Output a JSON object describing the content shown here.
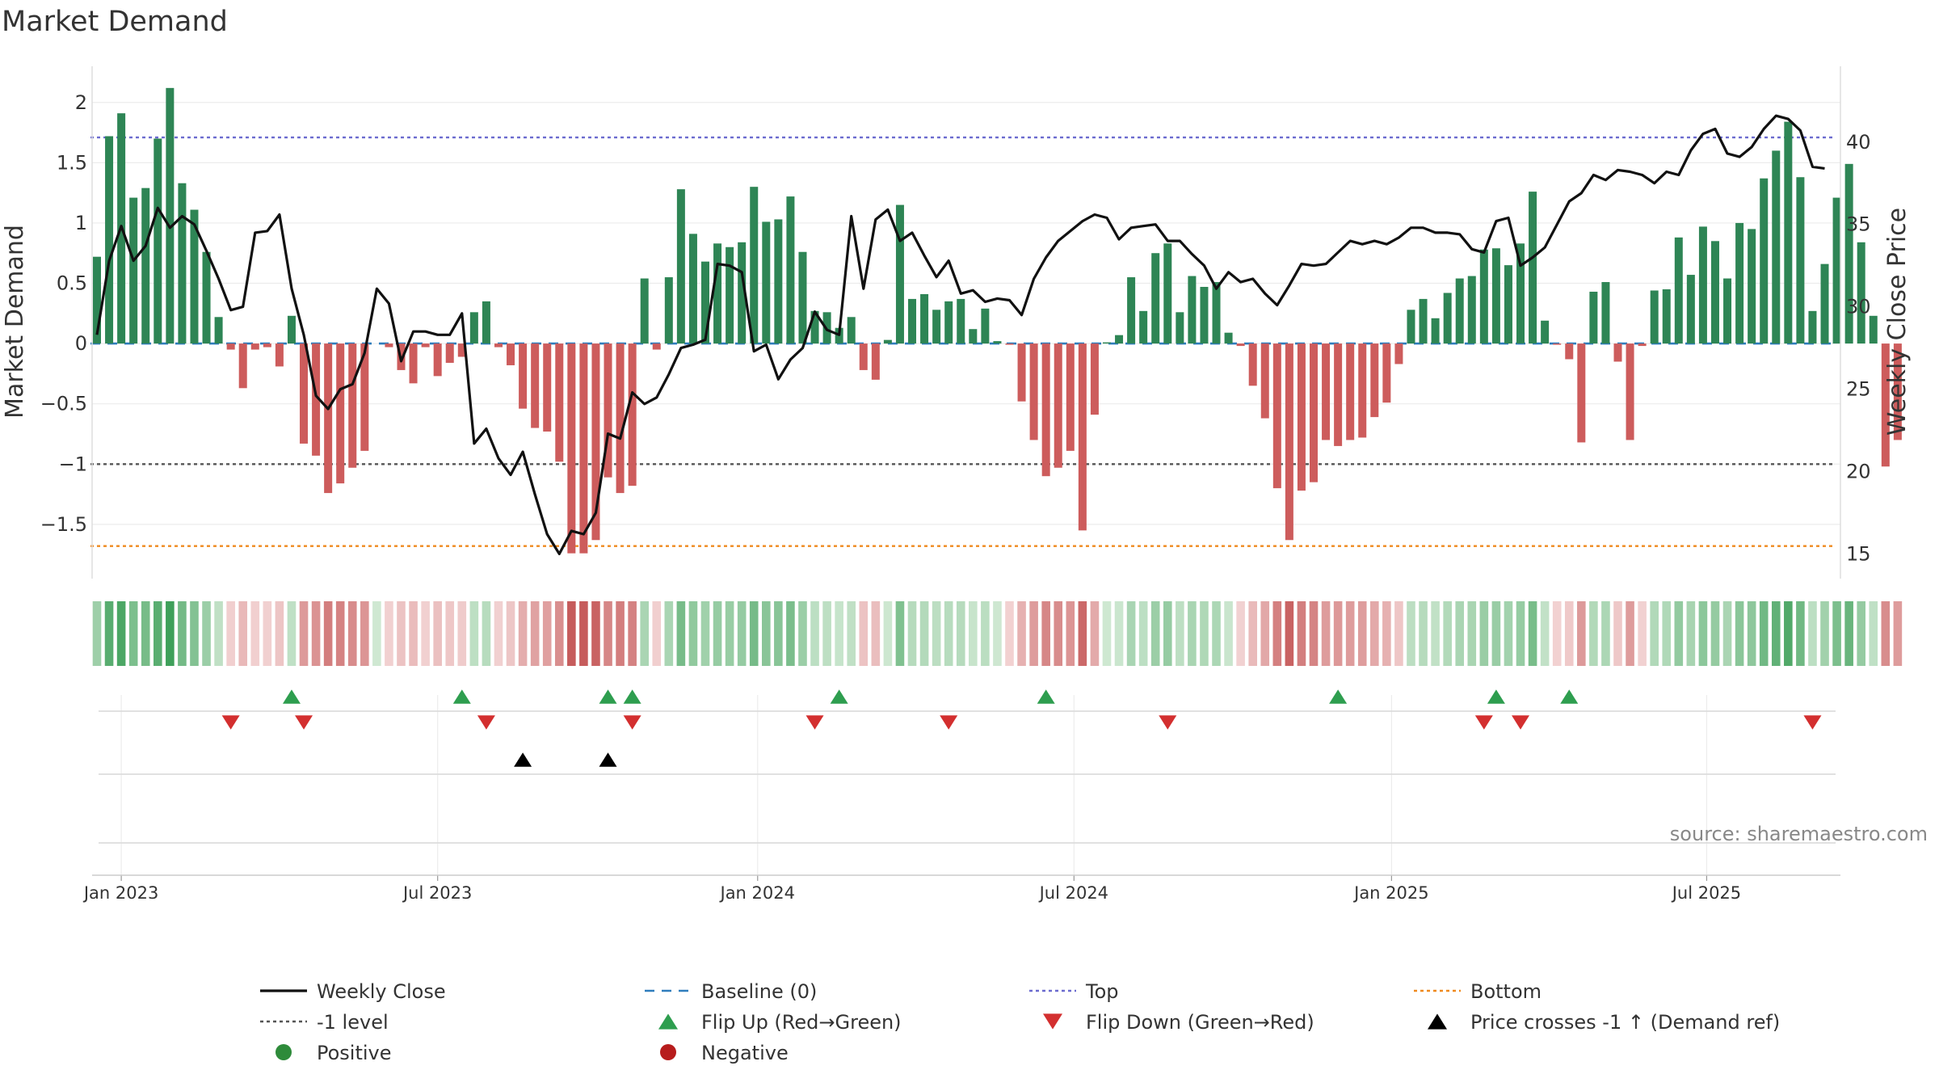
{
  "chart_data": {
    "type": "bar",
    "title": "Market Demand",
    "ylabel": "Market Demand",
    "y2label": "Weekly Close Price",
    "ylim": [
      -1.95,
      2.3
    ],
    "y2lim": [
      13.5,
      44.6
    ],
    "yticks": [
      2,
      1.5,
      1,
      0.5,
      0,
      -0.5,
      -1,
      -1.5
    ],
    "ytick_labels": [
      "2",
      "1.5",
      "1",
      "0.5",
      "0",
      "−0.5",
      "−1",
      "−1.5"
    ],
    "y2ticks": [
      40,
      35,
      30,
      25,
      20,
      15
    ],
    "y2tick_labels": [
      "40",
      "35",
      "30",
      "25",
      "20",
      "15"
    ],
    "xticks": [
      {
        "label": "Jan 2023",
        "week": 2
      },
      {
        "label": "Jul 2023",
        "week": 28
      },
      {
        "label": "Jan 2024",
        "week": 54.3
      },
      {
        "label": "Jul 2024",
        "week": 80.3
      },
      {
        "label": "Jan 2025",
        "week": 106.4
      },
      {
        "label": "Jul 2025",
        "week": 132.3
      }
    ],
    "reference_lines": {
      "top": 1.71,
      "minus_one": -1.0,
      "bottom": -1.68,
      "baseline": 0
    },
    "demand": [
      0.72,
      1.72,
      1.91,
      1.21,
      1.29,
      1.7,
      2.12,
      1.33,
      1.11,
      0.76,
      0.22,
      -0.05,
      -0.37,
      -0.05,
      -0.03,
      -0.19,
      0.23,
      -0.83,
      -0.93,
      -1.24,
      -1.16,
      -1.03,
      -0.89,
      0,
      -0.03,
      -0.22,
      -0.33,
      -0.03,
      -0.27,
      -0.16,
      -0.11,
      0.26,
      0.35,
      -0.03,
      -0.18,
      -0.54,
      -0.7,
      -0.73,
      -0.98,
      -1.74,
      -1.74,
      -1.63,
      -1.11,
      -1.24,
      -1.18,
      0.54,
      -0.05,
      0.55,
      1.28,
      0.91,
      0.68,
      0.83,
      0.8,
      0.84,
      1.3,
      1.01,
      1.03,
      1.22,
      0.76,
      0.27,
      0.26,
      0.13,
      0.22,
      -0.22,
      -0.3,
      0.03,
      1.15,
      0.37,
      0.41,
      0.28,
      0.35,
      0.37,
      0.12,
      0.29,
      0.02,
      -0.01,
      -0.48,
      -0.8,
      -1.1,
      -1.03,
      -0.89,
      -1.55,
      -0.59,
      0.01,
      0.07,
      0.55,
      0.27,
      0.75,
      0.83,
      0.26,
      0.56,
      0.47,
      0.51,
      0.09,
      -0.02,
      -0.35,
      -0.62,
      -1.2,
      -1.63,
      -1.22,
      -1.15,
      -0.8,
      -0.85,
      -0.8,
      -0.78,
      -0.61,
      -0.49,
      -0.17,
      0.28,
      0.37,
      0.21,
      0.42,
      0.54,
      0.56,
      0.78,
      0.79,
      0.65,
      0.83,
      1.26,
      0.19,
      -0.01,
      -0.13,
      -0.82,
      0.43,
      0.51,
      -0.15,
      -0.8,
      -0.02,
      0.44,
      0.45,
      0.88,
      0.57,
      0.97,
      0.85,
      0.54,
      1.0,
      0.95,
      1.37,
      1.6,
      1.84,
      1.38,
      0.27,
      0.66,
      1.21,
      1.49,
      0.84,
      0.23,
      -1.02,
      -0.8
    ],
    "price": [
      28.3,
      32.8,
      34.9,
      32.8,
      33.7,
      36.0,
      34.8,
      35.5,
      35.0,
      33.4,
      31.7,
      29.8,
      30.0,
      34.5,
      34.6,
      35.6,
      31.1,
      28.3,
      24.6,
      23.8,
      25.0,
      25.3,
      27.2,
      31.1,
      30.2,
      26.7,
      28.5,
      28.5,
      28.3,
      28.3,
      29.6,
      21.7,
      22.6,
      20.8,
      19.8,
      21.2,
      18.6,
      16.2,
      15.0,
      16.4,
      16.2,
      17.5,
      22.3,
      22.0,
      24.8,
      24.1,
      24.5,
      25.9,
      27.5,
      27.7,
      28.0,
      32.6,
      32.5,
      32.1,
      27.3,
      27.7,
      25.6,
      26.8,
      27.5,
      29.7,
      28.6,
      28.3,
      35.5,
      31.1,
      35.3,
      35.9,
      34.0,
      34.5,
      33.1,
      31.8,
      32.8,
      30.8,
      31.0,
      30.3,
      30.5,
      30.4,
      29.5,
      31.7,
      33.0,
      34.0,
      34.6,
      35.2,
      35.6,
      35.4,
      34.1,
      34.8,
      34.9,
      35.0,
      34.0,
      34.0,
      33.2,
      32.5,
      31.1,
      32.1,
      31.5,
      31.7,
      30.8,
      30.1,
      31.3,
      32.6,
      32.5,
      32.6,
      33.3,
      34.0,
      33.8,
      34.0,
      33.8,
      34.2,
      34.8,
      34.8,
      34.5,
      34.5,
      34.4,
      33.5,
      33.3,
      35.2,
      35.4,
      32.5,
      33.0,
      33.6,
      35.0,
      36.4,
      36.9,
      38.0,
      37.7,
      38.3,
      38.2,
      38.0,
      37.5,
      38.2,
      38.0,
      39.5,
      40.5,
      40.8,
      39.3,
      39.1,
      39.7,
      40.8,
      41.6,
      41.4,
      40.7,
      38.5,
      38.4
    ],
    "flip_up_weeks": [
      16,
      30,
      42,
      44,
      61,
      78,
      102,
      115,
      121
    ],
    "flip_down_weeks": [
      11,
      17,
      32,
      44,
      59,
      70,
      88,
      114,
      117,
      141
    ],
    "price_cross_weeks": [
      35,
      42
    ],
    "source": "source: sharemaestro.com",
    "legend": [
      {
        "label": "Weekly Close",
        "marker": "solid-line",
        "color": "#111111"
      },
      {
        "label": "Baseline (0)",
        "marker": "dashed-line",
        "color": "#2f7dbd"
      },
      {
        "label": "Top",
        "marker": "dotted-line",
        "color": "#6b6bcf"
      },
      {
        "label": "Bottom",
        "marker": "dotted-line",
        "color": "#ef8a1f"
      },
      {
        "label": "-1 level",
        "marker": "dotted-line",
        "color": "#555555"
      },
      {
        "label": "Flip Up (Red→Green)",
        "marker": "triangle-up",
        "color": "#2e9e4f"
      },
      {
        "label": "Flip Down (Green→Red)",
        "marker": "triangle-down",
        "color": "#d32f2f"
      },
      {
        "label": "Price crosses -1 ↑ (Demand ref)",
        "marker": "triangle-up",
        "color": "#000000"
      },
      {
        "label": "Positive",
        "marker": "circle",
        "color": "#2e8b3a"
      },
      {
        "label": "Negative",
        "marker": "circle",
        "color": "#b71c1c"
      }
    ],
    "colors": {
      "positive_bar": "#2e8555",
      "negative_bar": "#cd5c5c",
      "price_line": "#111111",
      "gridline": "#ececec",
      "axis": "#dddddd"
    }
  }
}
